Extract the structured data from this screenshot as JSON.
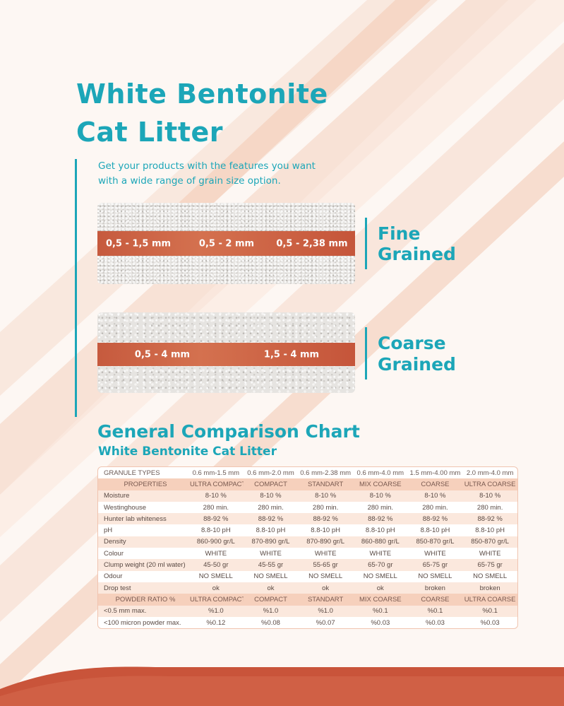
{
  "header": {
    "title_lines": [
      "White Bentonite",
      "Cat Litter"
    ],
    "subtitle_lines": [
      "Get your products with the features you want",
      "with a wide range of grain size option."
    ]
  },
  "fine": {
    "sizes": [
      "0,5 - 1,5 mm",
      "0,5 - 2 mm",
      "0,5 - 2,38 mm"
    ],
    "label_lines": [
      "Fine",
      "Grained"
    ]
  },
  "coarse": {
    "sizes": [
      "0,5 - 4 mm",
      "1,5 - 4 mm"
    ],
    "label_lines": [
      "Coarse",
      "Grained"
    ]
  },
  "chart": {
    "title": "General Comparison Chart",
    "subtitle": "White Bentonite Cat Litter"
  },
  "table": {
    "rows": [
      [
        "GRANULE TYPES",
        "0.6 mm-1.5 mm",
        "0.6 mm-2.0 mm",
        "0.6 mm-2.38 mm",
        "0.6 mm-4.0 mm",
        "1.5 mm-4.00 mm",
        "2.0 mm-4.0 mm"
      ],
      [
        "PROPERTIES",
        "ULTRA COMPACT",
        "COMPACT",
        "STANDART",
        "MIX COARSE",
        "COARSE",
        "ULTRA COARSE"
      ],
      [
        "Moisture",
        "8-10 %",
        "8-10 %",
        "8-10 %",
        "8-10 %",
        "8-10 %",
        "8-10 %"
      ],
      [
        "Westinghouse",
        "280 min.",
        "280 min.",
        "280 min.",
        "280 min.",
        "280 min.",
        "280 min."
      ],
      [
        "Hunter lab whiteness",
        "88-92 %",
        "88-92 %",
        "88-92 %",
        "88-92 %",
        "88-92 %",
        "88-92 %"
      ],
      [
        "pH",
        "8.8-10 pH",
        "8.8-10 pH",
        "8.8-10 pH",
        "8.8-10 pH",
        "8.8-10 pH",
        "8.8-10 pH"
      ],
      [
        "Density",
        "860-900 gr/L",
        "870-890 gr/L",
        "870-890 gr/L",
        "860-880 gr/L",
        "850-870 gr/L",
        "850-870 gr/L"
      ],
      [
        "Colour",
        "WHITE",
        "WHITE",
        "WHITE",
        "WHITE",
        "WHITE",
        "WHITE"
      ],
      [
        "Clump weight (20 ml water)",
        "45-50 gr",
        "45-55 gr",
        "55-65 gr",
        "65-70 gr",
        "65-75 gr",
        "65-75 gr"
      ],
      [
        "Odour",
        "NO SMELL",
        "NO SMELL",
        "NO SMELL",
        "NO SMELL",
        "NO SMELL",
        "NO SMELL"
      ],
      [
        "Drop test",
        "ok",
        "ok",
        "ok",
        "ok",
        "broken",
        "broken"
      ],
      [
        "POWDER RATIO %",
        "ULTRA COMPACT",
        "COMPACT",
        "STANDART",
        "MIX COARSE",
        "COARSE",
        "ULTRA COARSE"
      ],
      [
        "<0.5 mm max.",
        "%1.0",
        "%1.0",
        "%1.0",
        "%0.1",
        "%0.1",
        "%0.1"
      ],
      [
        "<100 micron powder max.",
        "%0.12",
        "%0.08",
        "%0.07",
        "%0.03",
        "%0.03",
        "%0.03"
      ]
    ]
  }
}
